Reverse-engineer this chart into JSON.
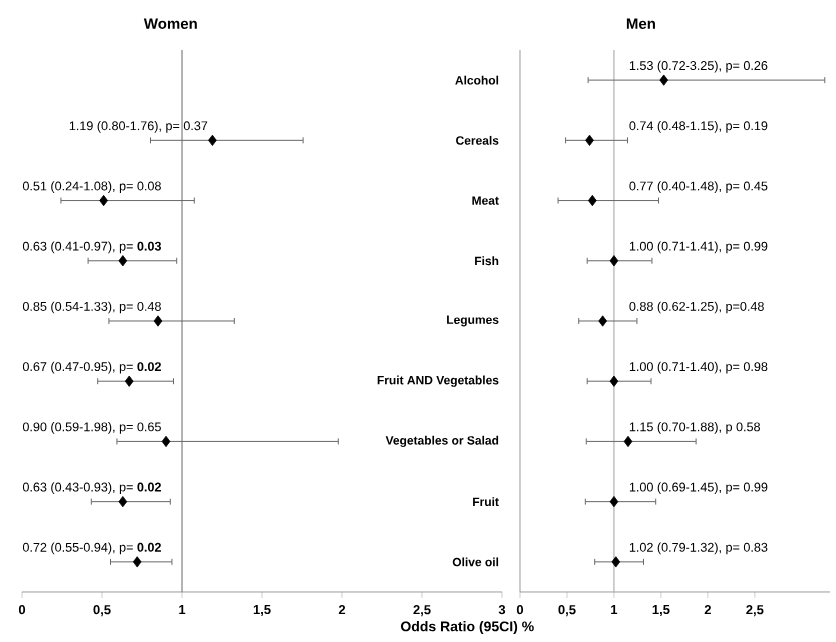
{
  "chart_data": [
    {
      "type": "scatter",
      "title": "Women",
      "orientation": "horizontal",
      "color": "#000000",
      "marker": "diamond",
      "tick_labels": "x",
      "categories": [
        null,
        null,
        null,
        null,
        null,
        null,
        null,
        null,
        null
      ],
      "values": [
        null,
        1.19,
        0.51,
        0.63,
        0.85,
        0.67,
        0.9,
        0.63,
        0.72
      ],
      "errors": [
        null,
        [
          0.8,
          1.76
        ],
        [
          0.24,
          1.08
        ],
        [
          0.41,
          0.97
        ],
        [
          0.54,
          1.33
        ],
        [
          0.47,
          0.95
        ],
        [
          0.59,
          1.98
        ],
        [
          0.43,
          0.93
        ],
        [
          0.55,
          0.94
        ]
      ],
      "value_labels": [
        null,
        "1.19 (0.80-1.76), p= 0.37",
        "0.51 (0.24-1.08), p= 0.08",
        "0.63 (0.41-0.97), p= **0.03**",
        "0.85 (0.54-1.33), p= 0.48",
        "0.67 (0.47-0.95), p= **0.02**",
        "0.90 (0.59-1.98), p= 0.65",
        "0.63 (0.43-0.93), p= **0.02**",
        "0.72 (0.55-0.94), p= **0.02**"
      ],
      "xlim": [
        0,
        3
      ],
      "xticks": [
        0,
        {
          "value": 0.5,
          "label": "0,5"
        },
        1,
        {
          "value": 1.5,
          "label": "1,5"
        },
        2,
        {
          "value": 2.5,
          "label": "2,5"
        },
        3
      ],
      "ref_lines": [
        {
          "axis": "x",
          "value": 1,
          "color": "#808080"
        }
      ]
    },
    {
      "type": "scatter",
      "title": "Men",
      "xlabel": "Odds Ratio (95CI) %",
      "orientation": "horizontal",
      "color": "#000000",
      "marker": "diamond",
      "categories": [
        "Alcohol",
        "Cereals",
        "Meat",
        "Fish",
        "Legumes",
        "Fruit AND Vegetables",
        "Vegetables or Salad",
        "Fruit",
        "Olive oil"
      ],
      "values": [
        1.53,
        0.74,
        0.77,
        1.0,
        0.88,
        1.0,
        1.15,
        1.0,
        1.02
      ],
      "errors": [
        [
          0.72,
          3.25
        ],
        [
          0.48,
          1.15
        ],
        [
          0.4,
          1.48
        ],
        [
          0.71,
          1.41
        ],
        [
          0.62,
          1.25
        ],
        [
          0.71,
          1.4
        ],
        [
          0.7,
          1.88
        ],
        [
          0.69,
          1.45
        ],
        [
          0.79,
          1.32
        ]
      ],
      "value_labels": [
        "1.53 (0.72-3.25), p= 0.26",
        "0.74 (0.48-1.15), p= 0.19",
        "0.77 (0.40-1.48), p= 0.45",
        "1.00 (0.71-1.41), p= 0.99",
        "0.88 (0.62-1.25), p=0.48",
        "1.00 (0.71-1.40), p= 0.98",
        "1.15 (0.70-1.88), p 0.58",
        "1.00 (0.69-1.45), p= 0.99",
        "1.02 (0.79-1.32), p= 0.83"
      ],
      "xlim": [
        0,
        3.3
      ],
      "xticks": [
        0,
        {
          "value": 0.5,
          "label": "0,5"
        },
        1,
        {
          "value": 1.5,
          "label": "1,5"
        },
        2,
        {
          "value": 2.5,
          "label": "2,5"
        }
      ],
      "ref_lines": [
        {
          "axis": "x",
          "value": 1,
          "color": "#b0b0b0"
        }
      ]
    }
  ]
}
